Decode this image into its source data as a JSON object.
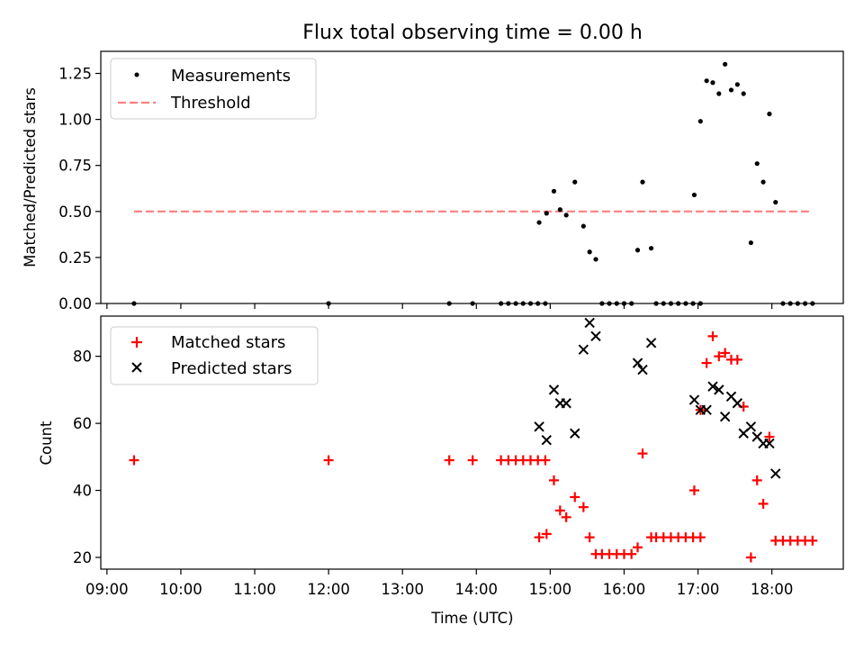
{
  "figure": {
    "title": "Flux total observing time = 0.00 h",
    "xlabel": "Time (UTC)"
  },
  "chart_data": [
    {
      "type": "scatter",
      "title": "Flux total observing time = 0.00 h",
      "ylabel": "Matched/Predicted stars",
      "xlim": [
        "08:55",
        "18:58"
      ],
      "ylim": [
        0,
        1.37
      ],
      "x_ticks": [
        "09:00",
        "10:00",
        "11:00",
        "12:00",
        "13:00",
        "14:00",
        "15:00",
        "16:00",
        "17:00",
        "18:00"
      ],
      "y_ticks": [
        "0.00",
        "0.25",
        "0.50",
        "0.75",
        "1.00",
        "1.25"
      ],
      "legend_position": "top-left",
      "series": [
        {
          "name": "Measurements",
          "color": "#000000",
          "marker": "dot",
          "points": [
            [
              "09:22",
              0.0
            ],
            [
              "12:00",
              0.0
            ],
            [
              "13:38",
              0.0
            ],
            [
              "13:57",
              0.0
            ],
            [
              "14:20",
              0.0
            ],
            [
              "14:26",
              0.0
            ],
            [
              "14:32",
              0.0
            ],
            [
              "14:38",
              0.0
            ],
            [
              "14:44",
              0.0
            ],
            [
              "14:50",
              0.0
            ],
            [
              "14:56",
              0.0
            ],
            [
              "14:51",
              0.44
            ],
            [
              "14:57",
              0.49
            ],
            [
              "15:03",
              0.61
            ],
            [
              "15:08",
              0.51
            ],
            [
              "15:13",
              0.48
            ],
            [
              "15:20",
              0.66
            ],
            [
              "15:27",
              0.42
            ],
            [
              "15:32",
              0.28
            ],
            [
              "15:37",
              0.24
            ],
            [
              "15:42",
              0.0
            ],
            [
              "15:48",
              0.0
            ],
            [
              "15:54",
              0.0
            ],
            [
              "16:00",
              0.0
            ],
            [
              "16:06",
              0.0
            ],
            [
              "16:11",
              0.29
            ],
            [
              "16:15",
              0.66
            ],
            [
              "16:22",
              0.3
            ],
            [
              "16:26",
              0.0
            ],
            [
              "16:32",
              0.0
            ],
            [
              "16:38",
              0.0
            ],
            [
              "16:44",
              0.0
            ],
            [
              "16:50",
              0.0
            ],
            [
              "16:56",
              0.0
            ],
            [
              "17:02",
              0.0
            ],
            [
              "16:57",
              0.59
            ],
            [
              "17:02",
              0.99
            ],
            [
              "17:07",
              1.21
            ],
            [
              "17:12",
              1.2
            ],
            [
              "17:17",
              1.14
            ],
            [
              "17:22",
              1.3
            ],
            [
              "17:27",
              1.16
            ],
            [
              "17:32",
              1.19
            ],
            [
              "17:37",
              1.14
            ],
            [
              "17:43",
              0.33
            ],
            [
              "17:48",
              0.76
            ],
            [
              "17:53",
              0.66
            ],
            [
              "17:58",
              1.03
            ],
            [
              "18:03",
              0.55
            ],
            [
              "18:09",
              0.0
            ],
            [
              "18:15",
              0.0
            ],
            [
              "18:21",
              0.0
            ],
            [
              "18:27",
              0.0
            ],
            [
              "18:33",
              0.0
            ]
          ]
        },
        {
          "name": "Threshold",
          "color": "#ff7f7f",
          "style": "dashed",
          "x_range": [
            "09:22",
            "18:33"
          ],
          "value": 0.5
        }
      ]
    },
    {
      "type": "scatter",
      "ylabel": "Count",
      "xlabel": "Time (UTC)",
      "xlim": [
        "08:55",
        "18:58"
      ],
      "ylim": [
        16.5,
        92
      ],
      "x_ticks": [
        "09:00",
        "10:00",
        "11:00",
        "12:00",
        "13:00",
        "14:00",
        "15:00",
        "16:00",
        "17:00",
        "18:00"
      ],
      "y_ticks": [
        "20",
        "40",
        "60",
        "80"
      ],
      "legend_position": "top-left",
      "series": [
        {
          "name": "Matched stars",
          "color": "#ff0000",
          "marker": "plus",
          "points": [
            [
              "09:22",
              49
            ],
            [
              "12:00",
              49
            ],
            [
              "13:38",
              49
            ],
            [
              "13:57",
              49
            ],
            [
              "14:20",
              49
            ],
            [
              "14:26",
              49
            ],
            [
              "14:32",
              49
            ],
            [
              "14:38",
              49
            ],
            [
              "14:44",
              49
            ],
            [
              "14:50",
              49
            ],
            [
              "14:56",
              49
            ],
            [
              "14:51",
              26
            ],
            [
              "14:57",
              27
            ],
            [
              "15:03",
              43
            ],
            [
              "15:08",
              34
            ],
            [
              "15:13",
              32
            ],
            [
              "15:20",
              38
            ],
            [
              "15:27",
              35
            ],
            [
              "15:32",
              26
            ],
            [
              "15:37",
              21
            ],
            [
              "15:42",
              21
            ],
            [
              "15:48",
              21
            ],
            [
              "15:54",
              21
            ],
            [
              "16:00",
              21
            ],
            [
              "16:06",
              21
            ],
            [
              "16:11",
              23
            ],
            [
              "16:15",
              51
            ],
            [
              "16:22",
              26
            ],
            [
              "16:26",
              26
            ],
            [
              "16:32",
              26
            ],
            [
              "16:38",
              26
            ],
            [
              "16:44",
              26
            ],
            [
              "16:50",
              26
            ],
            [
              "16:56",
              26
            ],
            [
              "17:02",
              26
            ],
            [
              "16:57",
              40
            ],
            [
              "17:02",
              64
            ],
            [
              "17:07",
              78
            ],
            [
              "17:12",
              86
            ],
            [
              "17:17",
              80
            ],
            [
              "17:22",
              81
            ],
            [
              "17:27",
              79
            ],
            [
              "17:32",
              79
            ],
            [
              "17:37",
              65
            ],
            [
              "17:43",
              20
            ],
            [
              "17:48",
              43
            ],
            [
              "17:53",
              36
            ],
            [
              "17:58",
              56
            ],
            [
              "18:03",
              25
            ],
            [
              "18:09",
              25
            ],
            [
              "18:15",
              25
            ],
            [
              "18:21",
              25
            ],
            [
              "18:27",
              25
            ],
            [
              "18:33",
              25
            ]
          ]
        },
        {
          "name": "Predicted stars",
          "color": "#000000",
          "marker": "cross",
          "points": [
            [
              "14:51",
              59
            ],
            [
              "14:57",
              55
            ],
            [
              "15:03",
              70
            ],
            [
              "15:08",
              66
            ],
            [
              "15:13",
              66
            ],
            [
              "15:20",
              57
            ],
            [
              "15:27",
              82
            ],
            [
              "15:32",
              90
            ],
            [
              "15:37",
              86
            ],
            [
              "16:11",
              78
            ],
            [
              "16:15",
              76
            ],
            [
              "16:22",
              84
            ],
            [
              "16:57",
              67
            ],
            [
              "17:02",
              64
            ],
            [
              "17:07",
              64
            ],
            [
              "17:12",
              71
            ],
            [
              "17:17",
              70
            ],
            [
              "17:22",
              62
            ],
            [
              "17:27",
              68
            ],
            [
              "17:32",
              66
            ],
            [
              "17:37",
              57
            ],
            [
              "17:43",
              59
            ],
            [
              "17:48",
              56
            ],
            [
              "17:53",
              54
            ],
            [
              "17:58",
              54
            ],
            [
              "18:03",
              45
            ]
          ]
        }
      ]
    }
  ]
}
